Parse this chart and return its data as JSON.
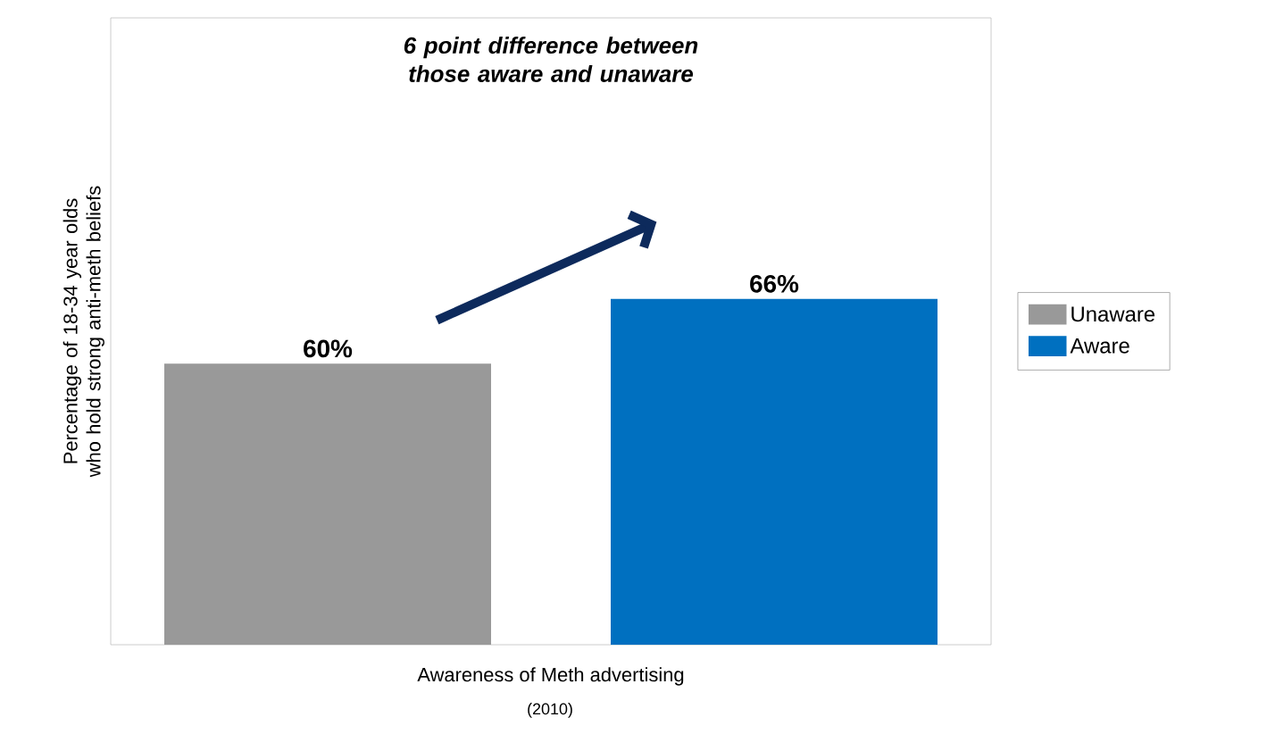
{
  "chart_data": {
    "type": "bar",
    "title": "6 point difference between those aware and unaware",
    "xlabel": "Awareness of Meth advertising",
    "ylabel": "Percentage of 18-34 year olds who hold strong anti-meth beliefs",
    "annotations": [
      "(2010)"
    ],
    "categories": [
      null
    ],
    "series": [
      {
        "name": "Unaware",
        "color": "#999999",
        "values": [
          60
        ],
        "value_labels": [
          "60%"
        ]
      },
      {
        "name": "Aware",
        "color": "#0070c0",
        "values": [
          66
        ],
        "value_labels": [
          "66%"
        ]
      }
    ],
    "ylim": [
      34,
      92
    ],
    "legend": "right"
  }
}
